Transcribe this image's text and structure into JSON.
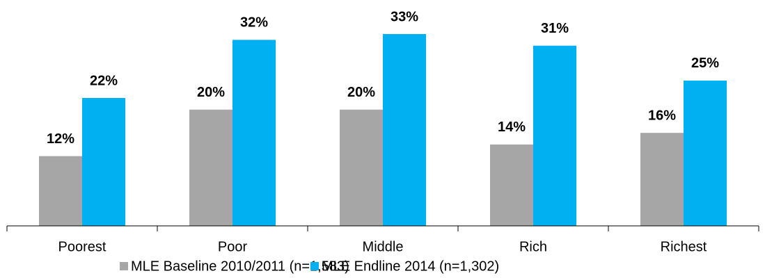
{
  "chart_data": {
    "type": "bar",
    "categories": [
      "Poorest",
      "Poor",
      "Middle",
      "Rich",
      "Richest"
    ],
    "series": [
      {
        "name": "MLE Baseline 2010/2011 (n=1,583)",
        "color": "#a6a6a6",
        "values": [
          12,
          20,
          20,
          14,
          16
        ],
        "value_labels": [
          "12%",
          "20%",
          "20%",
          "14%",
          "16%"
        ]
      },
      {
        "name": "MLE Endline 2014 (n=1,302)",
        "color": "#00b0f0",
        "values": [
          22,
          32,
          33,
          31,
          25
        ],
        "value_labels": [
          "22%",
          "32%",
          "33%",
          "31%",
          "25%"
        ]
      }
    ]
  }
}
